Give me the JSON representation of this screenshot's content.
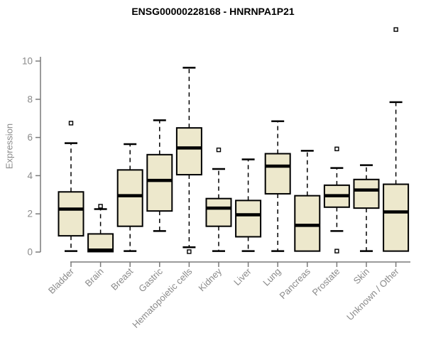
{
  "header": {
    "title": "ENSG00000228168 - HNRNPA1P21"
  },
  "chart_data": {
    "type": "boxplot",
    "title": "ENSG00000228168 - HNRNPA1P21",
    "xlabel": "",
    "ylabel": "Expression",
    "ylim": [
      0,
      10.3
    ],
    "yticks": [
      0,
      2,
      4,
      6,
      8,
      10
    ],
    "grid": false,
    "legend_position": "none",
    "categories": [
      "Bladder",
      "Brain",
      "Breast",
      "Gastric",
      "Hematopoietic cells",
      "Kidney",
      "Liver",
      "Lung",
      "Pancreas",
      "Prostate",
      "Skin",
      "Unknown / Other"
    ],
    "boxes": [
      {
        "label": "Bladder",
        "whisker_low": 0.05,
        "q1": 0.85,
        "median": 2.25,
        "q3": 3.15,
        "whisker_high": 5.7,
        "outliers": [
          6.75
        ]
      },
      {
        "label": "Brain",
        "whisker_low": 0.02,
        "q1": 0.02,
        "median": 0.1,
        "q3": 0.95,
        "whisker_high": 2.25,
        "outliers": [
          2.4
        ]
      },
      {
        "label": "Breast",
        "whisker_low": 0.05,
        "q1": 1.35,
        "median": 2.95,
        "q3": 4.3,
        "whisker_high": 5.65,
        "outliers": []
      },
      {
        "label": "Gastric",
        "whisker_low": 1.1,
        "q1": 2.15,
        "median": 3.75,
        "q3": 5.1,
        "whisker_high": 6.9,
        "outliers": []
      },
      {
        "label": "Hematopoietic cells",
        "whisker_low": 0.25,
        "q1": 4.05,
        "median": 5.45,
        "q3": 6.5,
        "whisker_high": 9.65,
        "outliers": [
          0.02
        ]
      },
      {
        "label": "Kidney",
        "whisker_low": 0.05,
        "q1": 1.35,
        "median": 2.3,
        "q3": 2.8,
        "whisker_high": 4.35,
        "outliers": [
          5.35
        ]
      },
      {
        "label": "Liver",
        "whisker_low": 0.05,
        "q1": 0.8,
        "median": 1.95,
        "q3": 2.7,
        "whisker_high": 4.85,
        "outliers": []
      },
      {
        "label": "Lung",
        "whisker_low": 0.05,
        "q1": 3.05,
        "median": 4.5,
        "q3": 5.15,
        "whisker_high": 6.85,
        "outliers": []
      },
      {
        "label": "Pancreas",
        "whisker_low": 0.05,
        "q1": 0.05,
        "median": 1.4,
        "q3": 2.95,
        "whisker_high": 5.3,
        "outliers": []
      },
      {
        "label": "Prostate",
        "whisker_low": 1.1,
        "q1": 2.35,
        "median": 2.95,
        "q3": 3.5,
        "whisker_high": 4.4,
        "outliers": [
          5.4,
          0.05
        ]
      },
      {
        "label": "Skin",
        "whisker_low": 0.05,
        "q1": 2.3,
        "median": 3.25,
        "q3": 3.8,
        "whisker_high": 4.55,
        "outliers": []
      },
      {
        "label": "Unknown / Other",
        "whisker_low": 0.05,
        "q1": 0.05,
        "median": 2.1,
        "q3": 3.55,
        "whisker_high": 7.85,
        "outliers": [
          11.65
        ]
      }
    ],
    "colors": {
      "box_fill": "#EDE8CC",
      "box_stroke": "#000000",
      "median": "#000000",
      "whisker": "#000000",
      "outlier_stroke": "#000000",
      "outlier_fill": "#ffffff",
      "axis": "#7a7a7a",
      "tick_label": "#8a8a8a",
      "title": "#000000"
    }
  }
}
